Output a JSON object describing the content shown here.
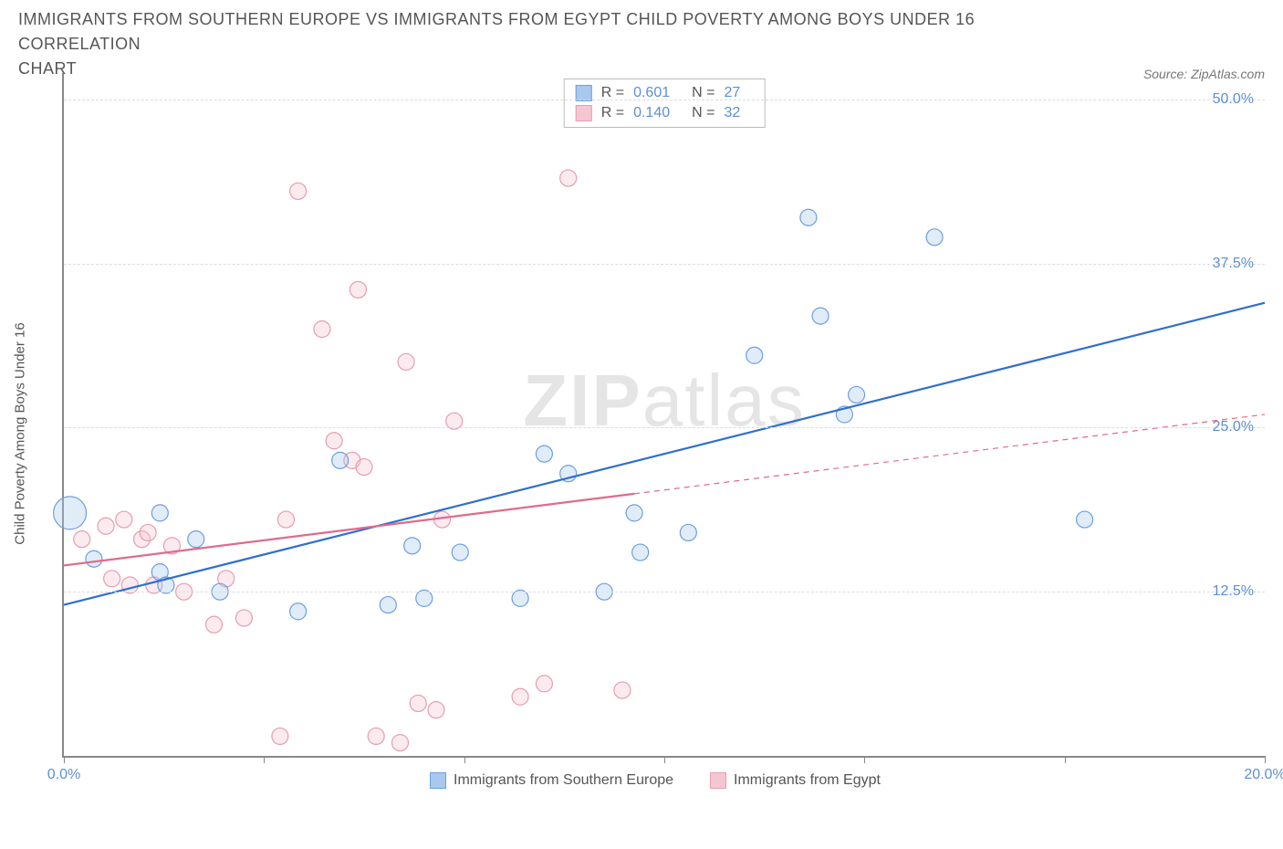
{
  "title_line1": "IMMIGRANTS FROM SOUTHERN EUROPE VS IMMIGRANTS FROM EGYPT CHILD POVERTY AMONG BOYS UNDER 16 CORRELATION",
  "title_line2": "CHART",
  "source_text": "Source: ZipAtlas.com",
  "y_axis_label": "Child Poverty Among Boys Under 16",
  "watermark_zip": "ZIP",
  "watermark_atlas": "atlas",
  "chart": {
    "type": "scatter",
    "background_color": "#ffffff",
    "grid_color": "#dddddd",
    "axis_color": "#888888",
    "text_color": "#555555",
    "value_color": "#5b8fd6",
    "xlim": [
      0,
      20
    ],
    "ylim": [
      0,
      52
    ],
    "x_ticks": [
      0,
      3.33,
      6.67,
      10,
      13.33,
      16.67,
      20
    ],
    "x_tick_labels": {
      "0": "0.0%",
      "20": "20.0%"
    },
    "y_ticks": [
      12.5,
      25,
      37.5,
      50
    ],
    "y_tick_labels": [
      "12.5%",
      "25.0%",
      "37.5%",
      "50.0%"
    ],
    "marker_radius": 9,
    "marker_stroke_width": 1.2,
    "marker_fill_opacity": 0.35,
    "line_width_solid": 2.2,
    "line_width_dash": 1.2,
    "dash_pattern": "6,5",
    "title_fontsize": 18,
    "label_fontsize": 15,
    "tick_fontsize": 16
  },
  "series": [
    {
      "id": "southern_europe",
      "label": "Immigrants from Southern Europe",
      "R": "0.601",
      "N": "27",
      "color_stroke": "#6b9fe0",
      "color_fill": "#a9c8ee",
      "trend_color": "#2f6fd0",
      "trend": {
        "x1": 0,
        "y1": 11.5,
        "x2": 20,
        "y2": 34.5,
        "solid_until_x": 20
      },
      "points": [
        {
          "x": 0.1,
          "y": 18.5,
          "r": 18
        },
        {
          "x": 0.5,
          "y": 15.0
        },
        {
          "x": 1.6,
          "y": 18.5
        },
        {
          "x": 1.6,
          "y": 14.0
        },
        {
          "x": 1.7,
          "y": 13.0
        },
        {
          "x": 2.2,
          "y": 16.5
        },
        {
          "x": 2.6,
          "y": 12.5
        },
        {
          "x": 3.9,
          "y": 11.0
        },
        {
          "x": 4.6,
          "y": 22.5
        },
        {
          "x": 5.4,
          "y": 11.5
        },
        {
          "x": 5.8,
          "y": 16.0
        },
        {
          "x": 6.0,
          "y": 12.0
        },
        {
          "x": 6.6,
          "y": 15.5
        },
        {
          "x": 7.6,
          "y": 12.0
        },
        {
          "x": 8.0,
          "y": 23.0
        },
        {
          "x": 8.4,
          "y": 21.5
        },
        {
          "x": 9.0,
          "y": 12.5
        },
        {
          "x": 9.5,
          "y": 18.5
        },
        {
          "x": 9.6,
          "y": 15.5
        },
        {
          "x": 10.4,
          "y": 17.0
        },
        {
          "x": 11.5,
          "y": 30.5
        },
        {
          "x": 12.4,
          "y": 41.0
        },
        {
          "x": 12.6,
          "y": 33.5
        },
        {
          "x": 13.0,
          "y": 26.0
        },
        {
          "x": 13.2,
          "y": 27.5
        },
        {
          "x": 14.5,
          "y": 39.5
        },
        {
          "x": 17.0,
          "y": 18.0
        }
      ]
    },
    {
      "id": "egypt",
      "label": "Immigrants from Egypt",
      "R": "0.140",
      "N": "32",
      "color_stroke": "#e79cb0",
      "color_fill": "#f4c6d2",
      "trend_color": "#e06a8a",
      "trend": {
        "x1": 0,
        "y1": 14.5,
        "x2": 20,
        "y2": 26.0,
        "solid_until_x": 9.5
      },
      "points": [
        {
          "x": 0.3,
          "y": 16.5
        },
        {
          "x": 0.7,
          "y": 17.5
        },
        {
          "x": 0.8,
          "y": 13.5
        },
        {
          "x": 1.0,
          "y": 18.0
        },
        {
          "x": 1.1,
          "y": 13.0
        },
        {
          "x": 1.3,
          "y": 16.5
        },
        {
          "x": 1.4,
          "y": 17.0
        },
        {
          "x": 1.5,
          "y": 13.0
        },
        {
          "x": 1.8,
          "y": 16.0
        },
        {
          "x": 2.0,
          "y": 12.5
        },
        {
          "x": 2.5,
          "y": 10.0
        },
        {
          "x": 2.7,
          "y": 13.5
        },
        {
          "x": 3.0,
          "y": 10.5
        },
        {
          "x": 3.6,
          "y": 1.5
        },
        {
          "x": 3.7,
          "y": 18.0
        },
        {
          "x": 3.9,
          "y": 43.0
        },
        {
          "x": 4.3,
          "y": 32.5
        },
        {
          "x": 4.5,
          "y": 24.0
        },
        {
          "x": 4.8,
          "y": 22.5
        },
        {
          "x": 4.9,
          "y": 35.5
        },
        {
          "x": 5.0,
          "y": 22.0
        },
        {
          "x": 5.2,
          "y": 1.5
        },
        {
          "x": 5.6,
          "y": 1.0
        },
        {
          "x": 5.7,
          "y": 30.0
        },
        {
          "x": 5.9,
          "y": 4.0
        },
        {
          "x": 6.2,
          "y": 3.5
        },
        {
          "x": 6.3,
          "y": 18.0
        },
        {
          "x": 6.5,
          "y": 25.5
        },
        {
          "x": 7.6,
          "y": 4.5
        },
        {
          "x": 8.0,
          "y": 5.5
        },
        {
          "x": 8.4,
          "y": 44.0
        },
        {
          "x": 9.3,
          "y": 5.0
        }
      ]
    }
  ],
  "stat_labels": {
    "R": "R =",
    "N": "N ="
  }
}
